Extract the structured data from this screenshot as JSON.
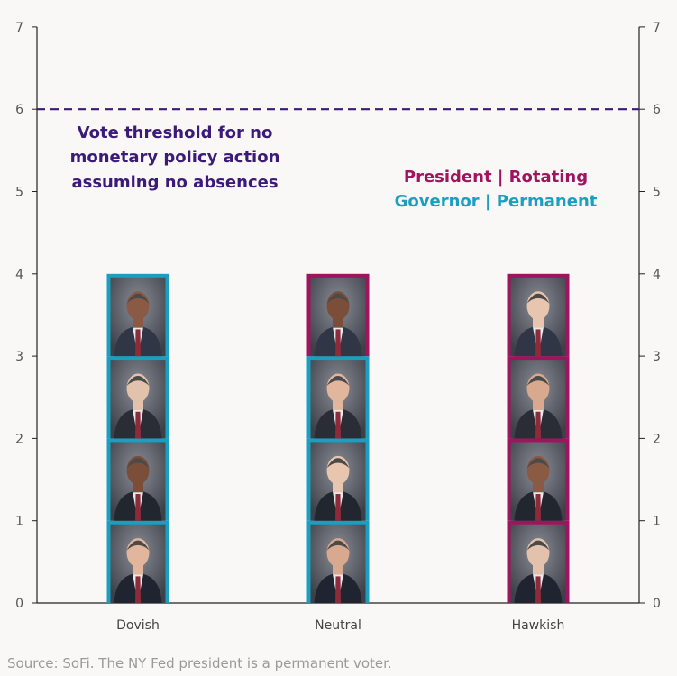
{
  "colors": {
    "threshold": "#3c1a78",
    "president": "#a0135e",
    "governor": "#1a9fc0",
    "axis": "#222222",
    "source_text": "#9a9a9a",
    "background": "#f9f8f6"
  },
  "annotations": {
    "threshold_lines": [
      "Vote threshold for no",
      "monetary policy action",
      "assuming no absences"
    ],
    "legend_president": "President | Rotating",
    "legend_governor": "Governor | Permanent"
  },
  "source": "Source: SoFi. The NY Fed president is a permanent voter.",
  "chart_data": {
    "type": "bar",
    "stacked": true,
    "title": "",
    "xlabel": "",
    "ylabel": "",
    "categories": [
      "Dovish",
      "Neutral",
      "Hawkish"
    ],
    "values": [
      4,
      4,
      4
    ],
    "ylim": [
      0,
      7
    ],
    "yticks": [
      0,
      1,
      2,
      3,
      4,
      5,
      6,
      7
    ],
    "y_axis_both_sides": true,
    "threshold": 6,
    "stacks": [
      [
        "governor",
        "governor",
        "governor",
        "governor"
      ],
      [
        "governor",
        "governor",
        "governor",
        "president"
      ],
      [
        "president",
        "president",
        "president",
        "president"
      ]
    ],
    "legend": [
      {
        "name": "President | Rotating",
        "key": "president"
      },
      {
        "name": "Governor | Permanent",
        "key": "governor"
      }
    ]
  }
}
